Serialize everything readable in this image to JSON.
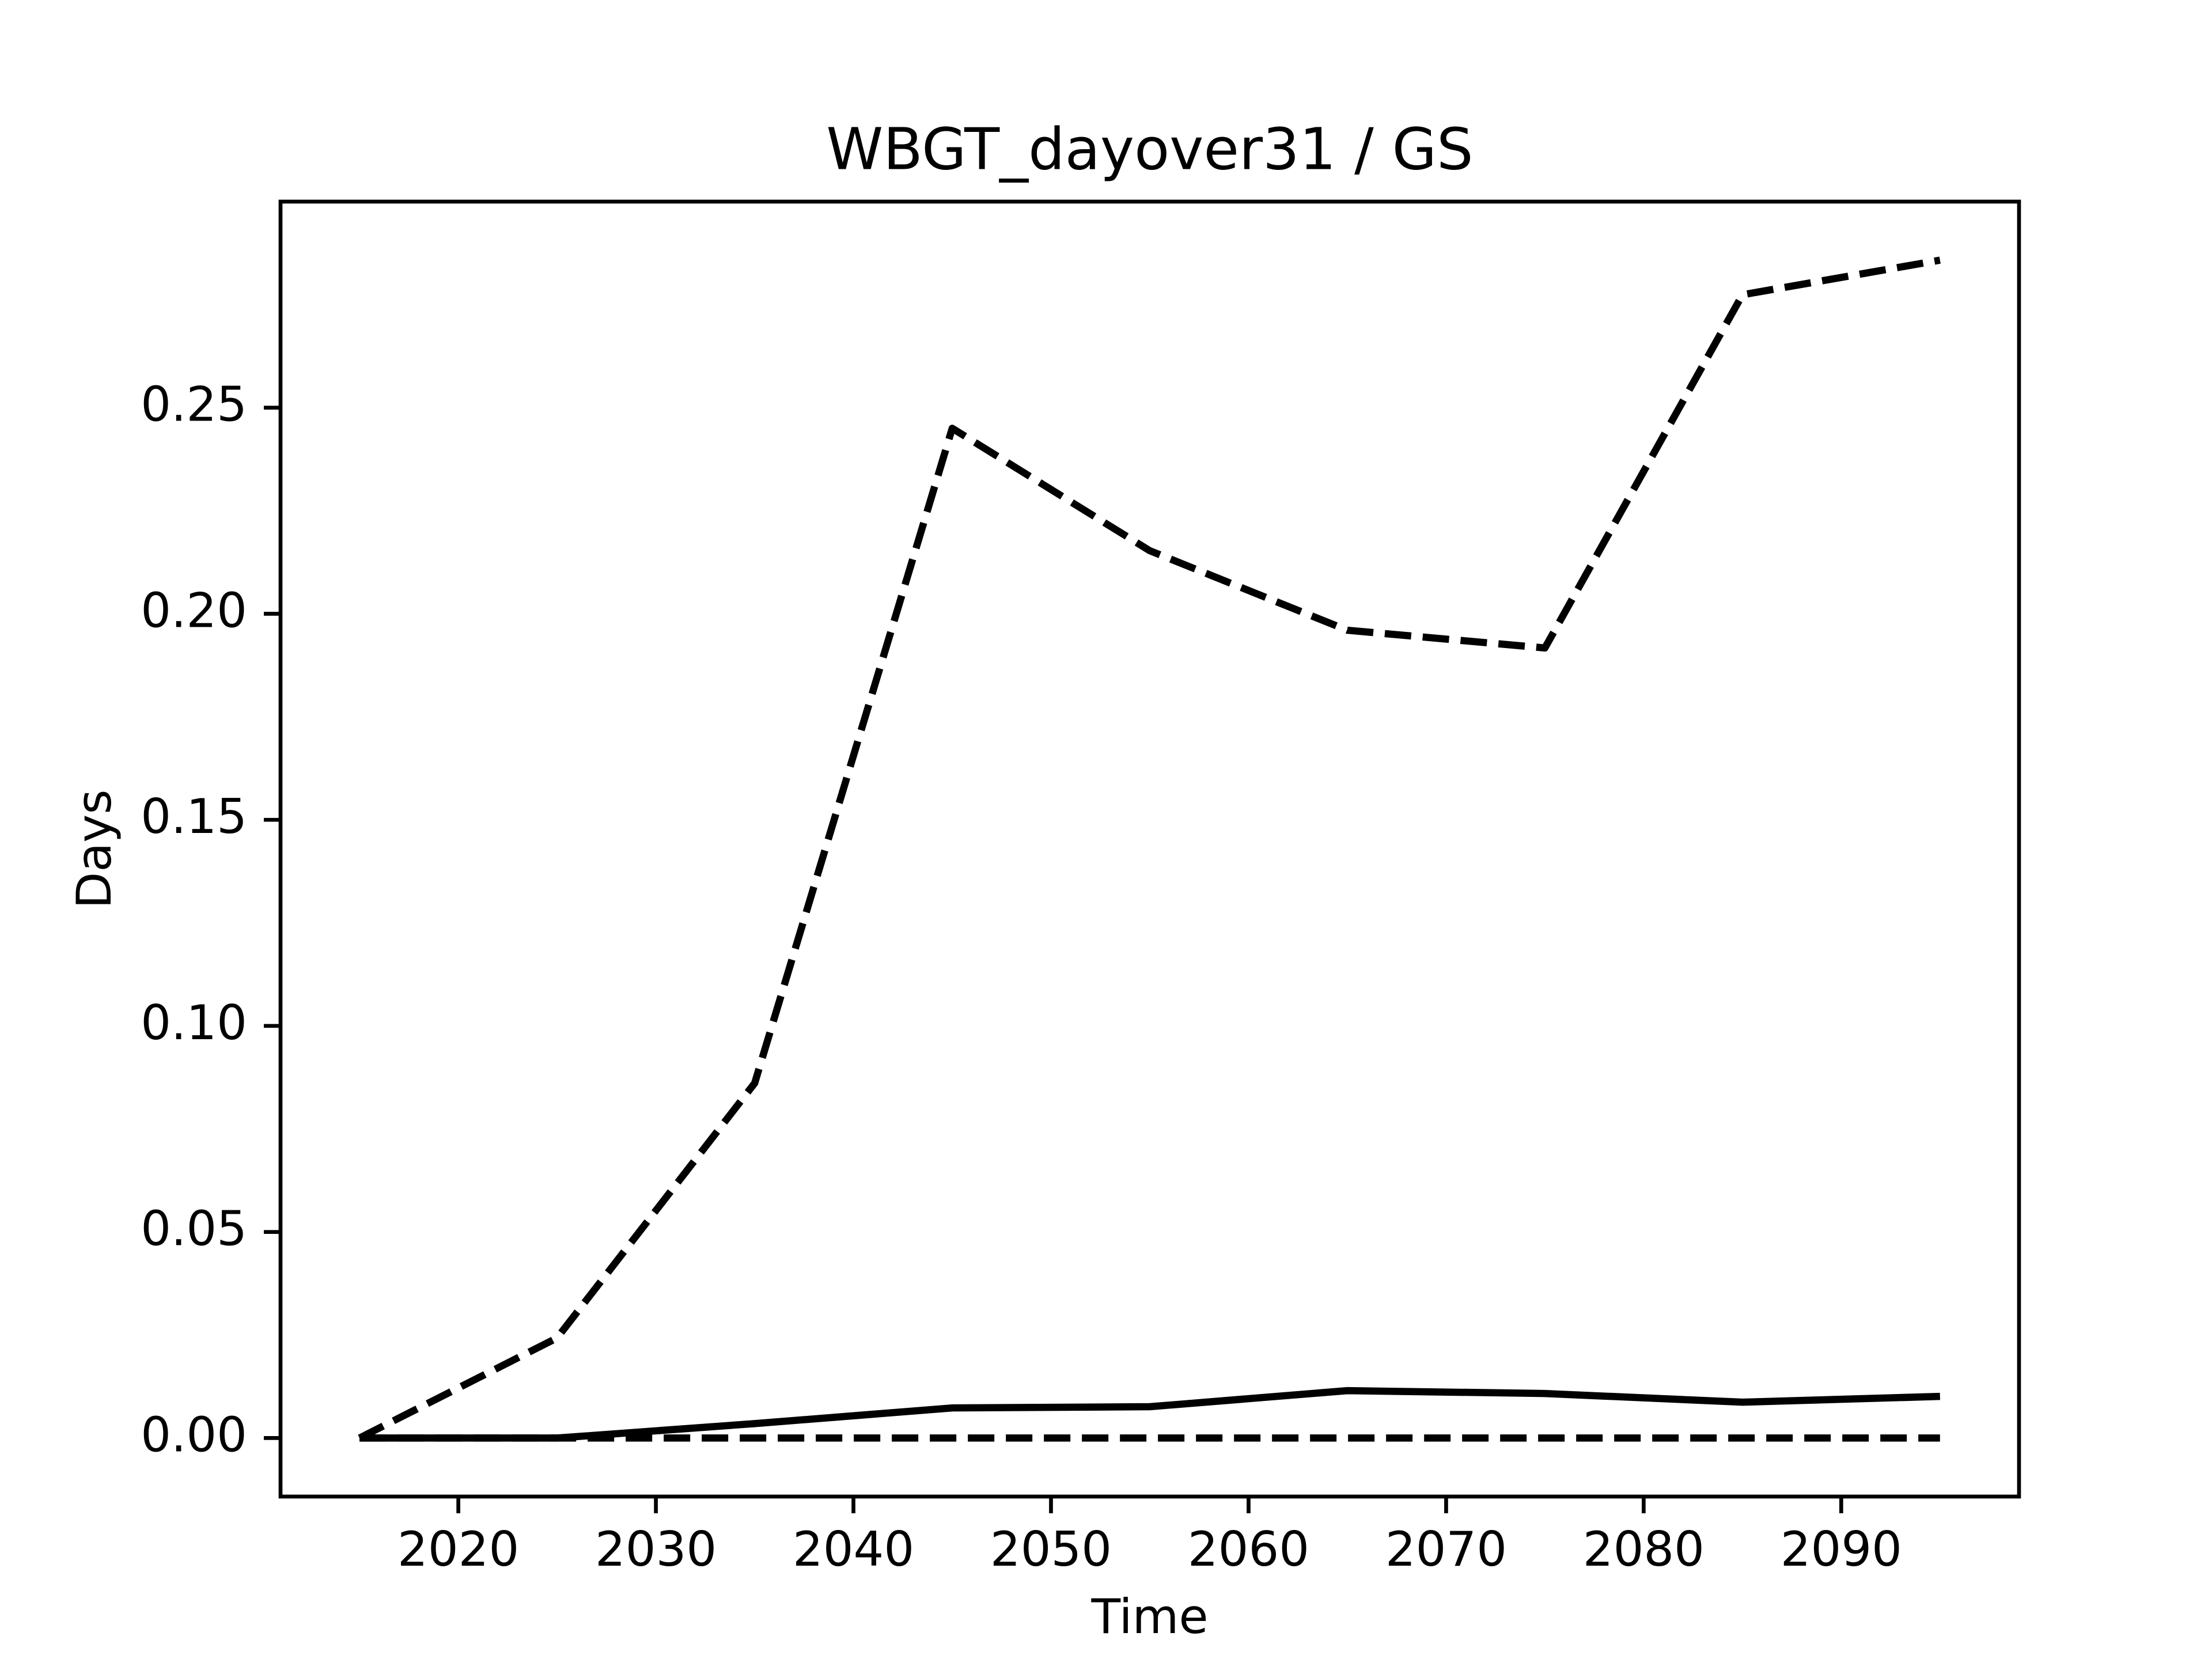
{
  "chart_data": {
    "type": "line",
    "title": "WBGT_dayover31 / GS",
    "xlabel": "Time",
    "ylabel": "Days",
    "x": [
      2015,
      2025,
      2035,
      2045,
      2055,
      2065,
      2075,
      2085,
      2095
    ],
    "series": [
      {
        "color": "#000000",
        "dash": true,
        "values": [
          0,
          0.0243,
          0.0861,
          0.245,
          0.2153,
          0.196,
          0.1917,
          0.2774,
          0.2858
        ]
      },
      {
        "color": "#000000",
        "dash": false,
        "values": [
          0,
          0,
          0.0035,
          0.0073,
          0.0076,
          0.0115,
          0.0108,
          0.0087,
          0.0101
        ]
      },
      {
        "color": "#000000",
        "dash": true,
        "values": [
          0,
          0,
          0,
          0,
          0,
          0,
          0,
          0,
          0
        ]
      }
    ],
    "xlim": [
      2011,
      2099
    ],
    "xticks": [
      2020,
      2030,
      2040,
      2050,
      2060,
      2070,
      2080,
      2090
    ],
    "ylim": [
      -0.0142,
      0.3
    ],
    "yticks": [
      {
        "value": 0,
        "label": "0.00"
      },
      {
        "value": 0.05,
        "label": "0.05"
      },
      {
        "value": 0.1,
        "label": "0.10"
      },
      {
        "value": 0.15,
        "label": "0.15"
      },
      {
        "value": 0.2,
        "label": "0.20"
      },
      {
        "value": 0.25,
        "label": "0.25"
      }
    ],
    "grid": false
  }
}
